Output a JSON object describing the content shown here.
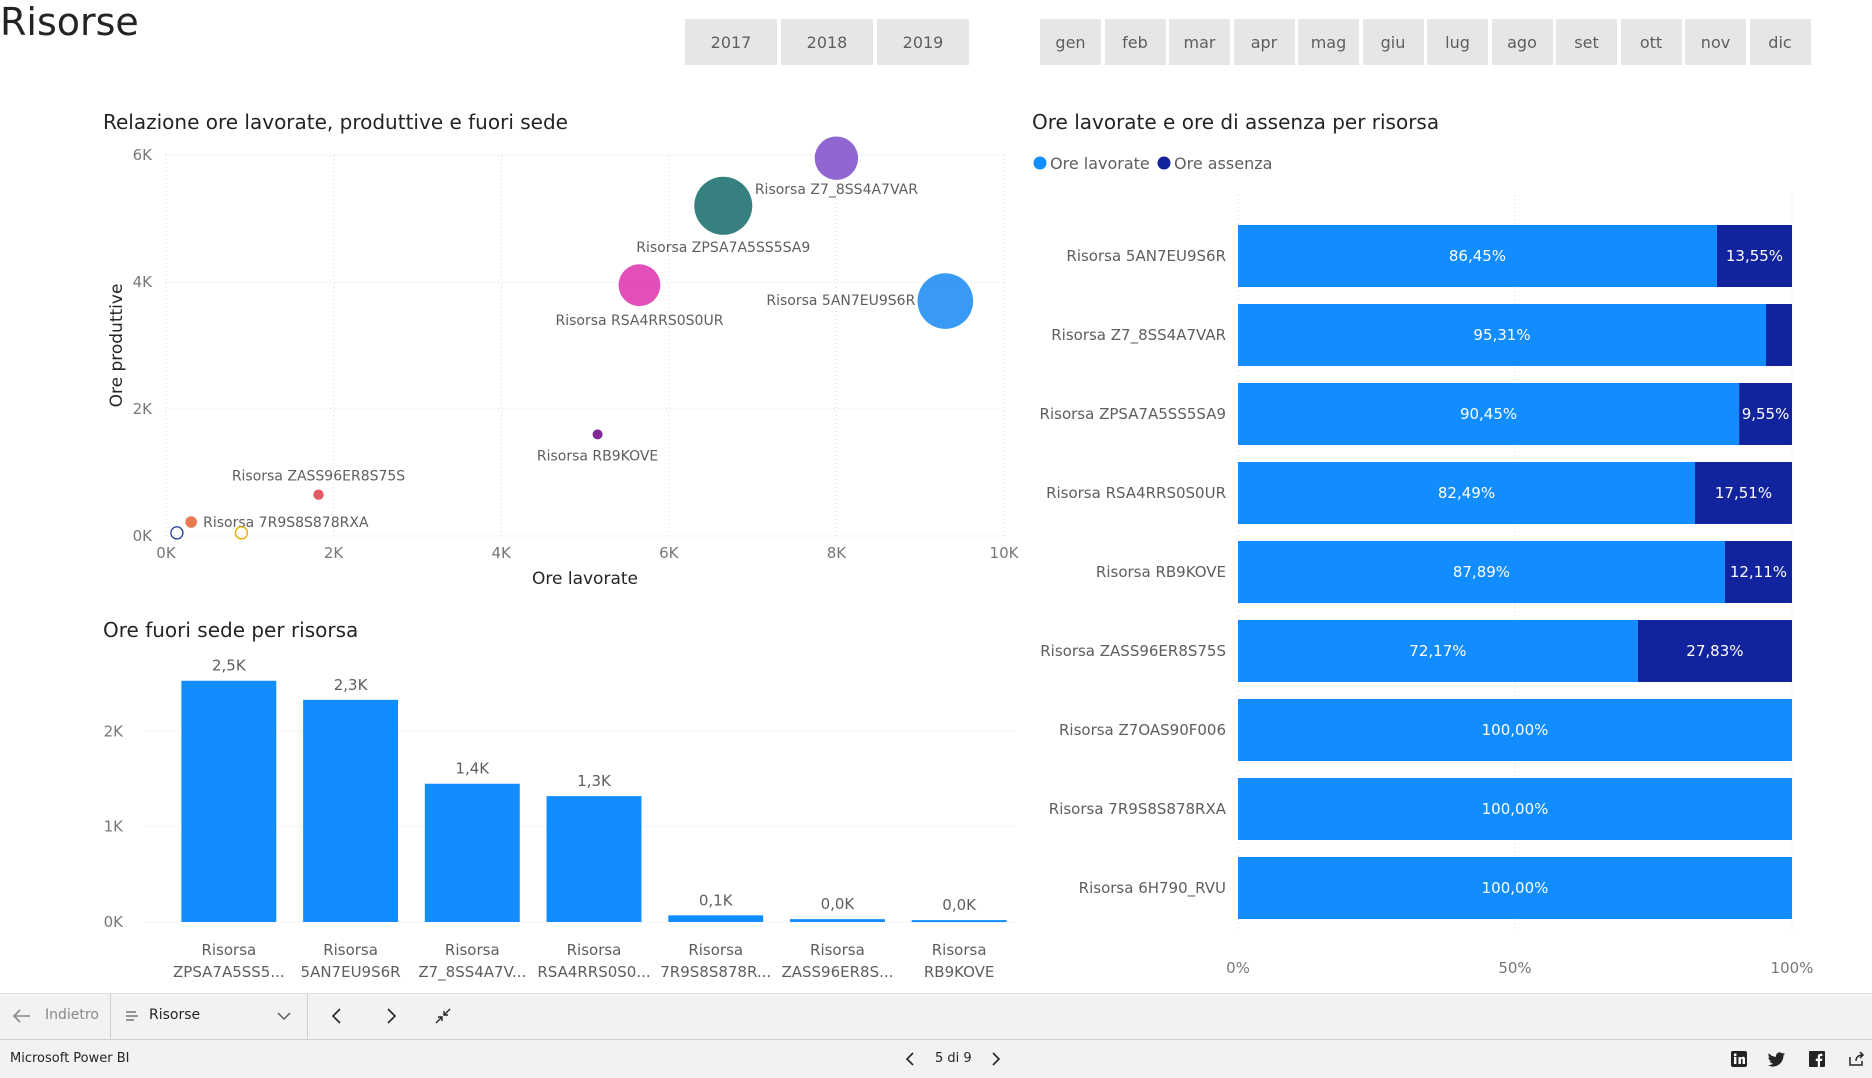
{
  "page": {
    "title": "Risorse"
  },
  "years": [
    "2017",
    "2018",
    "2019"
  ],
  "months": [
    "gen",
    "feb",
    "mar",
    "apr",
    "mag",
    "giu",
    "lug",
    "ago",
    "set",
    "ott",
    "nov",
    "dic"
  ],
  "chart_data": [
    {
      "type": "scatter",
      "title": "Relazione ore lavorate, produttive e fuori sede",
      "xlabel": "Ore lavorate",
      "ylabel": "Ore produttive",
      "xlim": [
        0,
        10000
      ],
      "ylim": [
        0,
        6000
      ],
      "x_ticks": [
        "0K",
        "2K",
        "4K",
        "6K",
        "8K",
        "10K"
      ],
      "y_ticks": [
        "0K",
        "2K",
        "4K",
        "6K"
      ],
      "grid": true,
      "points": [
        {
          "label": "Risorsa Z7_8SS4A7VAR",
          "x": 8000,
          "y": 5950,
          "size": 1400,
          "color": "#8a5fcf"
        },
        {
          "label": "Risorsa ZPSA7A5SS5SA9",
          "x": 6650,
          "y": 5200,
          "size": 2500,
          "color": "#2b7a78"
        },
        {
          "label": "Risorsa RSA4RRS0S0UR",
          "x": 5650,
          "y": 3950,
          "size": 1300,
          "color": "#e046b5"
        },
        {
          "label": "Risorsa 5AN7EU9S6R",
          "x": 9300,
          "y": 3700,
          "size": 2300,
          "color": "#2e95f5"
        },
        {
          "label": "Risorsa RB9KOVE",
          "x": 5150,
          "y": 1600,
          "size": 50,
          "color": "#7a1f8f"
        },
        {
          "label": "Risorsa ZASS96ER8S75S",
          "x": 1820,
          "y": 650,
          "size": 80,
          "color": "#e0515a"
        },
        {
          "label": "Risorsa 7R9S8S878RXA",
          "x": 300,
          "y": 220,
          "size": 100,
          "color": "#e8734a"
        },
        {
          "label": "",
          "x": 130,
          "y": 50,
          "size": 10,
          "color": "#2e4a9f"
        },
        {
          "label": "",
          "x": 900,
          "y": 50,
          "size": 10,
          "color": "#e0b000"
        }
      ]
    },
    {
      "type": "bar",
      "title": "Ore fuori sede per risorsa",
      "categories": [
        [
          "Risorsa",
          "ZPSA7A5SS5..."
        ],
        [
          "Risorsa",
          "5AN7EU9S6R"
        ],
        [
          "Risorsa",
          "Z7_8SS4A7V..."
        ],
        [
          "Risorsa",
          "RSA4RRS0S0..."
        ],
        [
          "Risorsa",
          "7R9S8S878R..."
        ],
        [
          "Risorsa",
          "ZASS96ER8S..."
        ],
        [
          "Risorsa",
          "RB9KOVE"
        ]
      ],
      "values": [
        2530,
        2330,
        1450,
        1320,
        70,
        30,
        20
      ],
      "data_labels": [
        "2,5K",
        "2,3K",
        "1,4K",
        "1,3K",
        "0,1K",
        "0,0K",
        "0,0K"
      ],
      "y_ticks": [
        "0K",
        "1K",
        "2K"
      ],
      "ylim": [
        0,
        2800
      ],
      "color": "#118dff"
    },
    {
      "type": "bar",
      "orientation": "horizontal-100%-stacked",
      "title": "Ore lavorate e ore di assenza per risorsa",
      "legend": [
        {
          "name": "Ore lavorate",
          "color": "#118dff"
        },
        {
          "name": "Ore assenza",
          "color": "#12239e"
        }
      ],
      "categories": [
        "Risorsa 5AN7EU9S6R",
        "Risorsa Z7_8SS4A7VAR",
        "Risorsa ZPSA7A5SS5SA9",
        "Risorsa RSA4RRS0S0UR",
        "Risorsa RB9KOVE",
        "Risorsa ZASS96ER8S75S",
        "Risorsa Z7OAS90F006",
        "Risorsa 7R9S8S878RXA",
        "Risorsa 6H790_RVU"
      ],
      "series": [
        {
          "name": "Ore lavorate",
          "values": [
            86.45,
            95.31,
            90.45,
            82.49,
            87.89,
            72.17,
            100,
            100,
            100
          ],
          "labels": [
            "86,45%",
            "95,31%",
            "90,45%",
            "82,49%",
            "87,89%",
            "72,17%",
            "100,00%",
            "100,00%",
            "100,00%"
          ]
        },
        {
          "name": "Ore assenza",
          "values": [
            13.55,
            4.69,
            9.55,
            17.51,
            12.11,
            27.83,
            0,
            0,
            0
          ],
          "labels": [
            "13,55%",
            "",
            "9,55%",
            "17,51%",
            "12,11%",
            "27,83%",
            "",
            "",
            ""
          ]
        }
      ],
      "x_ticks": [
        "0%",
        "50%",
        "100%"
      ]
    }
  ],
  "nav": {
    "back": "Indietro",
    "page_select": "Risorse"
  },
  "status": {
    "app": "Microsoft Power BI",
    "page_counter": "5 di 9"
  }
}
